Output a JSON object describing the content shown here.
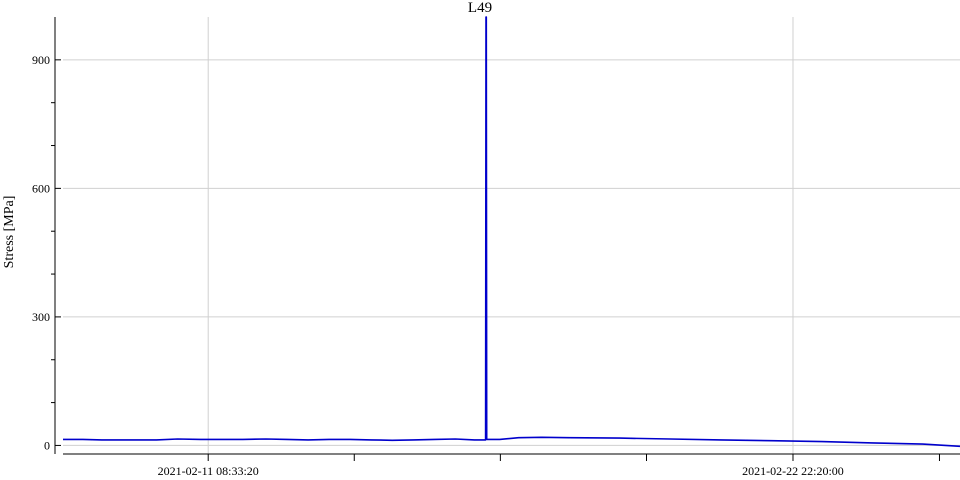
{
  "chart_data": {
    "type": "line",
    "title": "L49",
    "xlabel": "",
    "ylabel": "Stress [MPa]",
    "ylim": [
      0,
      1000
    ],
    "xlim": [
      "2021-02-08 11:35:00",
      "2021-02-26 05:40:00"
    ],
    "grid": true,
    "y_major_ticks": [
      0,
      300,
      600,
      900
    ],
    "y_tick_labels": [
      "0",
      "300",
      "600",
      "900"
    ],
    "y_minor_ticks": [
      100,
      200,
      400,
      500,
      700,
      800
    ],
    "x_major_ticks": [
      "2021-02-11 08:33:20",
      "2021-02-22 22:20:00"
    ],
    "x_tick_labels": [
      "2021-02-11 08:33:20",
      "2021-02-22 22:20:00"
    ],
    "x_minor_ticks": [
      "2021-02-14 05:56:00",
      "2021-02-17 03:20:00",
      "2021-02-20 00:45:00",
      "2021-02-25 19:55:00"
    ],
    "series": [
      {
        "color": "#0000cc",
        "x": [
          "2021-02-08 11:35:00",
          "2021-02-08 21:00:00",
          "2021-02-09 06:00:00",
          "2021-02-09 15:00:00",
          "2021-02-10 00:00:00",
          "2021-02-10 08:00:00",
          "2021-02-10 18:00:00",
          "2021-02-11 05:00:00",
          "2021-02-11 15:00:00",
          "2021-02-12 01:00:00",
          "2021-02-12 12:00:00",
          "2021-02-12 22:00:00",
          "2021-02-13 08:00:00",
          "2021-02-13 18:00:00",
          "2021-02-14 04:00:00",
          "2021-02-14 14:00:00",
          "2021-02-15 00:00:00",
          "2021-02-15 10:00:00",
          "2021-02-15 20:00:00",
          "2021-02-16 06:00:00",
          "2021-02-16 15:00:00",
          "2021-02-16 20:20:00",
          "2021-02-16 20:30:00",
          "2021-02-16 20:40:00",
          "2021-02-16 20:50:00",
          "2021-02-17 03:00:00",
          "2021-02-17 12:00:00",
          "2021-02-17 23:00:00",
          "2021-02-18 12:00:00",
          "2021-02-19 12:00:00",
          "2021-02-20 12:00:00",
          "2021-02-21 12:00:00",
          "2021-02-22 12:00:00",
          "2021-02-23 12:00:00",
          "2021-02-24 12:00:00",
          "2021-02-25 12:00:00",
          "2021-02-26 05:40:00"
        ],
        "y": [
          14,
          14,
          13,
          13,
          13,
          13,
          15,
          14,
          14,
          14,
          15,
          14,
          13,
          14,
          14,
          13,
          12,
          13,
          14,
          15,
          13,
          13,
          1000,
          1000,
          14,
          14,
          18,
          19,
          18,
          17,
          15,
          13,
          11,
          9,
          6,
          3,
          -2
        ]
      }
    ]
  }
}
